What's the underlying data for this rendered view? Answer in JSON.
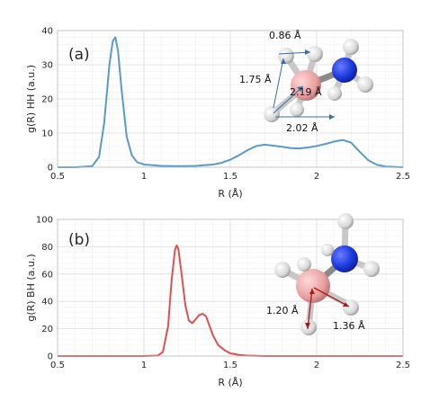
{
  "chart_data": [
    {
      "type": "line",
      "panel_label": "(a)",
      "xlabel": "R (Å)",
      "ylabel": "g(R) HH (a.u.)",
      "xlim": [
        0.5,
        2.5
      ],
      "ylim": [
        0,
        40
      ],
      "xticks": [
        0.5,
        1,
        1.5,
        2,
        2.5
      ],
      "xtick_labels": [
        "0.5",
        "1",
        "1.5",
        "2",
        "2.5"
      ],
      "yticks": [
        0,
        10,
        20,
        30,
        40
      ],
      "ytick_labels": [
        "0",
        "10",
        "20",
        "30",
        "40"
      ],
      "grid": true,
      "color": "#5a9ac8",
      "series": [
        {
          "x": [
            0.5,
            0.6,
            0.7,
            0.74,
            0.77,
            0.8,
            0.82,
            0.835,
            0.85,
            0.87,
            0.9,
            0.93,
            0.96,
            1.0,
            1.1,
            1.2,
            1.3,
            1.4,
            1.45,
            1.5,
            1.55,
            1.6,
            1.65,
            1.7,
            1.75,
            1.8,
            1.85,
            1.9,
            1.95,
            2.0,
            2.05,
            2.1,
            2.15,
            2.2,
            2.25,
            2.3,
            2.35,
            2.4,
            2.5
          ],
          "y": [
            0,
            0,
            0.3,
            3,
            13,
            30,
            37,
            38,
            34,
            23,
            9,
            3.5,
            1.5,
            0.8,
            0.4,
            0.3,
            0.4,
            0.8,
            1.3,
            2.2,
            3.5,
            5,
            6.2,
            6.6,
            6.3,
            6.0,
            5.6,
            5.5,
            5.8,
            6.2,
            6.8,
            7.5,
            8.0,
            7.2,
            4.5,
            2.0,
            0.7,
            0.2,
            0
          ]
        }
      ],
      "annotations": [
        "0.86 Å",
        "1.75 Å",
        "2.19 Å",
        "2.02 Å"
      ]
    },
    {
      "type": "line",
      "panel_label": "(b)",
      "xlabel": "R (Å)",
      "ylabel": "g(R) BH (a.u.)",
      "xlim": [
        0.5,
        2.5
      ],
      "ylim": [
        0,
        100
      ],
      "xticks": [
        0.5,
        1,
        1.5,
        2,
        2.5
      ],
      "xtick_labels": [
        "0.5",
        "1",
        "1.5",
        "2",
        "2.5"
      ],
      "yticks": [
        0,
        20,
        40,
        60,
        80,
        100
      ],
      "ytick_labels": [
        "0",
        "20",
        "40",
        "60",
        "80",
        "100"
      ],
      "grid": true,
      "color": "#e05050",
      "series": [
        {
          "x": [
            0.5,
            1.0,
            1.08,
            1.11,
            1.14,
            1.16,
            1.18,
            1.19,
            1.2,
            1.22,
            1.24,
            1.26,
            1.28,
            1.3,
            1.32,
            1.34,
            1.36,
            1.38,
            1.4,
            1.43,
            1.47,
            1.5,
            1.55,
            1.6,
            1.7,
            2.5
          ],
          "y": [
            0,
            0,
            0.3,
            3,
            22,
            55,
            78,
            81,
            78,
            58,
            37,
            26,
            24,
            27,
            30,
            31,
            29,
            22,
            15,
            8,
            4,
            2,
            0.8,
            0.3,
            0,
            0
          ]
        }
      ],
      "annotations": [
        "1.20 Å",
        "1.36 Å"
      ]
    }
  ]
}
